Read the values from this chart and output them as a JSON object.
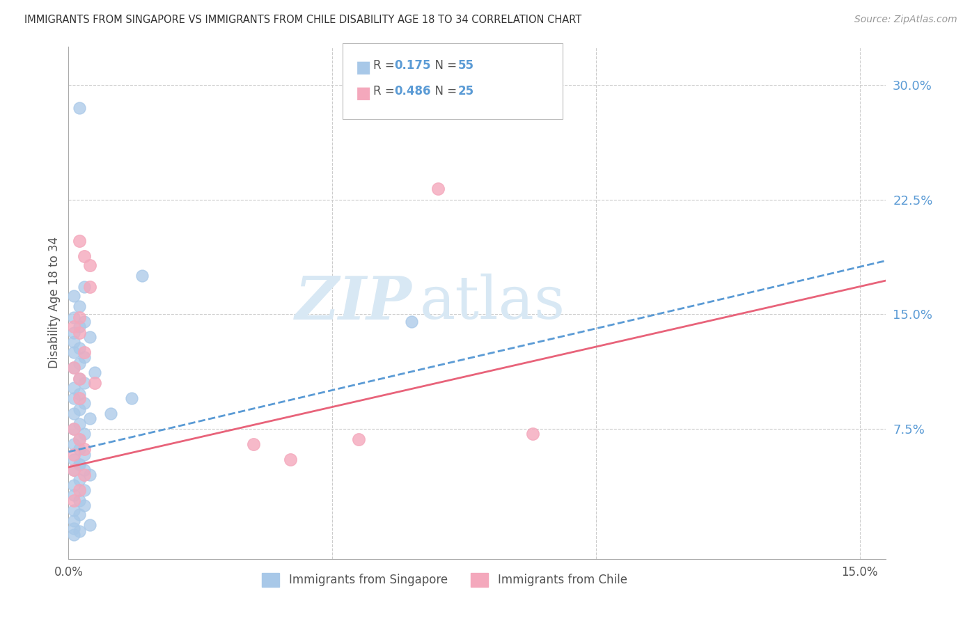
{
  "title": "IMMIGRANTS FROM SINGAPORE VS IMMIGRANTS FROM CHILE DISABILITY AGE 18 TO 34 CORRELATION CHART",
  "source": "Source: ZipAtlas.com",
  "ylabel": "Disability Age 18 to 34",
  "xlim": [
    0.0,
    0.155
  ],
  "ylim": [
    -0.01,
    0.325
  ],
  "yticks_right": [
    0.075,
    0.15,
    0.225,
    0.3
  ],
  "ytick_labels_right": [
    "7.5%",
    "15.0%",
    "22.5%",
    "30.0%"
  ],
  "singapore_R": 0.175,
  "singapore_N": 55,
  "chile_R": 0.486,
  "chile_N": 25,
  "singapore_color": "#a8c8e8",
  "chile_color": "#f4a8bc",
  "singapore_line_color": "#5b9bd5",
  "chile_line_color": "#e8637a",
  "grid_color": "#cccccc",
  "title_color": "#333333",
  "right_axis_color": "#5b9bd5",
  "watermark_color": "#d8e8f4",
  "sg_x": [
    0.002,
    0.014,
    0.003,
    0.001,
    0.002,
    0.001,
    0.003,
    0.002,
    0.001,
    0.004,
    0.001,
    0.002,
    0.001,
    0.003,
    0.002,
    0.001,
    0.005,
    0.002,
    0.003,
    0.001,
    0.002,
    0.001,
    0.003,
    0.002,
    0.001,
    0.004,
    0.002,
    0.001,
    0.003,
    0.002,
    0.001,
    0.002,
    0.003,
    0.001,
    0.002,
    0.001,
    0.004,
    0.002,
    0.001,
    0.003,
    0.065,
    0.001,
    0.002,
    0.003,
    0.001,
    0.002,
    0.001,
    0.004,
    0.001,
    0.002,
    0.001,
    0.003,
    0.002,
    0.012,
    0.008
  ],
  "sg_y": [
    0.285,
    0.175,
    0.168,
    0.162,
    0.155,
    0.148,
    0.145,
    0.142,
    0.138,
    0.135,
    0.132,
    0.128,
    0.125,
    0.122,
    0.118,
    0.115,
    0.112,
    0.108,
    0.105,
    0.102,
    0.098,
    0.095,
    0.092,
    0.088,
    0.085,
    0.082,
    0.078,
    0.075,
    0.072,
    0.068,
    0.065,
    0.062,
    0.058,
    0.055,
    0.052,
    0.048,
    0.045,
    0.042,
    0.038,
    0.035,
    0.145,
    0.032,
    0.028,
    0.025,
    0.022,
    0.019,
    0.015,
    0.012,
    0.01,
    0.008,
    0.006,
    0.048,
    0.052,
    0.095,
    0.085
  ],
  "ch_x": [
    0.001,
    0.002,
    0.003,
    0.001,
    0.002,
    0.07,
    0.003,
    0.004,
    0.002,
    0.001,
    0.005,
    0.002,
    0.004,
    0.003,
    0.002,
    0.001,
    0.035,
    0.003,
    0.002,
    0.088,
    0.001,
    0.002,
    0.042,
    0.001,
    0.055
  ],
  "ch_y": [
    0.075,
    0.068,
    0.125,
    0.048,
    0.138,
    0.232,
    0.188,
    0.168,
    0.148,
    0.115,
    0.105,
    0.095,
    0.182,
    0.062,
    0.108,
    0.058,
    0.065,
    0.045,
    0.035,
    0.072,
    0.028,
    0.198,
    0.055,
    0.142,
    0.068
  ],
  "sg_line_x0": 0.0,
  "sg_line_y0": 0.06,
  "sg_line_x1": 0.155,
  "sg_line_y1": 0.185,
  "ch_line_x0": 0.0,
  "ch_line_y0": 0.05,
  "ch_line_x1": 0.155,
  "ch_line_y1": 0.172
}
